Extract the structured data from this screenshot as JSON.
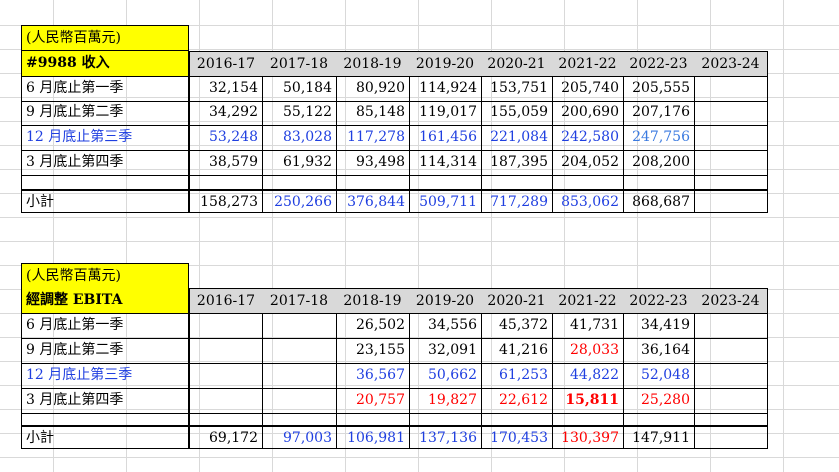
{
  "tables": [
    {
      "unit_label": "(人民幣百萬元)",
      "title": "#9988 收入",
      "years": [
        "2016-17",
        "2017-18",
        "2018-19",
        "2019-20",
        "2020-21",
        "2021-22",
        "2022-23",
        "2023-24"
      ],
      "rows": [
        {
          "label": "6 月底止第一季",
          "values": [
            "32,154",
            "50,184",
            "80,920",
            "114,924",
            "153,751",
            "205,740",
            "205,555",
            ""
          ]
        },
        {
          "label": "9 月底止第二季",
          "values": [
            "34,292",
            "55,122",
            "85,148",
            "119,017",
            "155,059",
            "200,690",
            "207,176",
            ""
          ]
        },
        {
          "label": "12 月底止第三季",
          "values": [
            "53,248",
            "83,028",
            "117,278",
            "161,456",
            "221,084",
            "242,580",
            "247,756",
            ""
          ]
        },
        {
          "label": "3 月底止第四季",
          "values": [
            "38,579",
            "61,932",
            "93,498",
            "114,314",
            "187,395",
            "204,052",
            "208,200",
            ""
          ]
        }
      ],
      "subtotal": {
        "label": "小計",
        "values": [
          "158,273",
          "250,266",
          "376,844",
          "509,711",
          "717,289",
          "853,062",
          "868,687",
          ""
        ]
      }
    },
    {
      "unit_label": "(人民幣百萬元)",
      "title": "經調整 EBITA",
      "years": [
        "2016-17",
        "2017-18",
        "2018-19",
        "2019-20",
        "2020-21",
        "2021-22",
        "2022-23",
        "2023-24"
      ],
      "rows": [
        {
          "label": "6 月底止第一季",
          "values": [
            "",
            "",
            "26,502",
            "34,556",
            "45,372",
            "41,731",
            "34,419",
            ""
          ]
        },
        {
          "label": "9 月底止第二季",
          "values": [
            "",
            "",
            "23,155",
            "32,091",
            "41,216",
            "28,033",
            "36,164",
            ""
          ]
        },
        {
          "label": "12 月底止第三季",
          "values": [
            "",
            "",
            "36,567",
            "50,662",
            "61,253",
            "44,822",
            "52,048",
            ""
          ]
        },
        {
          "label": "3 月底止第四季",
          "values": [
            "",
            "",
            "20,757",
            "19,827",
            "22,612",
            "15,811",
            "25,280",
            ""
          ]
        }
      ],
      "subtotal": {
        "label": "小計",
        "values": [
          "69,172",
          "97,003",
          "106,981",
          "137,136",
          "170,453",
          "130,397",
          "147,911",
          ""
        ]
      }
    }
  ],
  "colors": {
    "header_fill": "#d9d9d9",
    "title_fill": "#ffff00",
    "blue": "#1f3fe0",
    "light_blue": "#3a7ae0",
    "red": "#ff0000"
  }
}
